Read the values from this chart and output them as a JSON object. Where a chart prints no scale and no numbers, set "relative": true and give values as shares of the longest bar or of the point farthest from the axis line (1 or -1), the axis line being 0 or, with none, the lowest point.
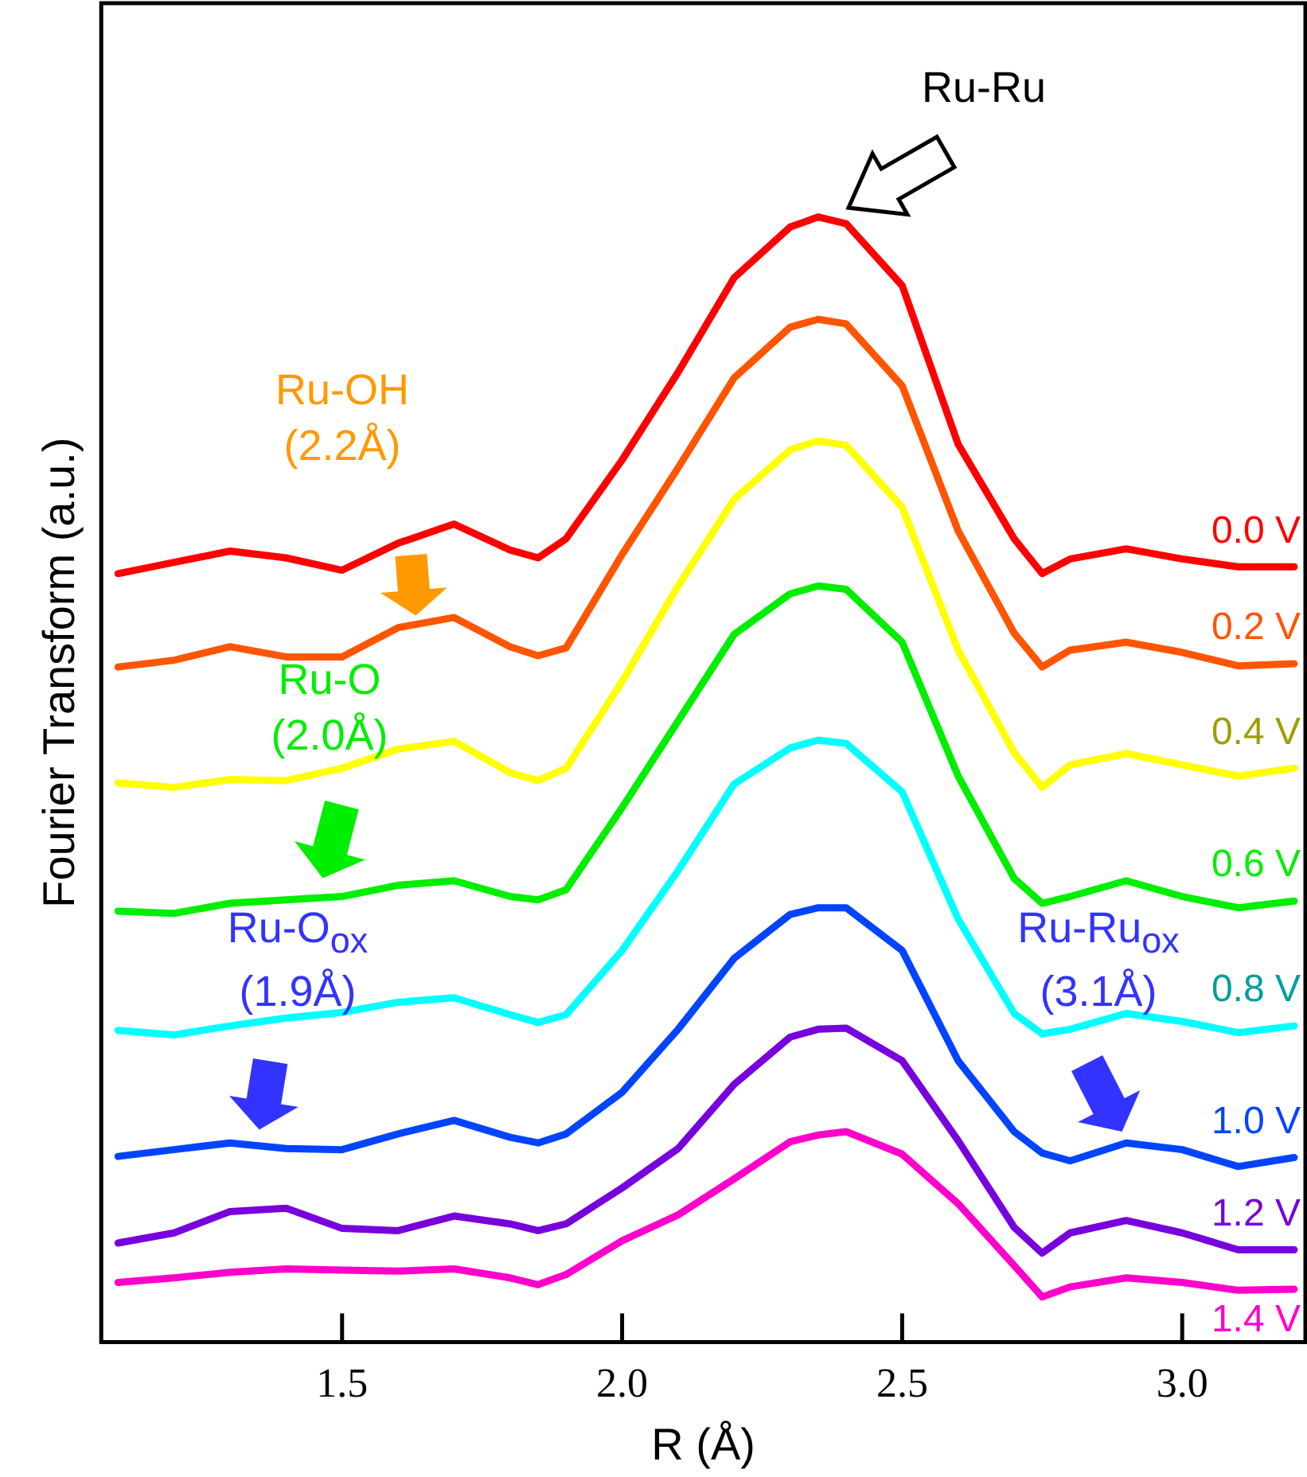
{
  "chart_data": {
    "type": "line",
    "relative": true,
    "xlabel": "R (Å)",
    "ylabel": "Fourier Transform (a.u.)",
    "xlim": [
      1.07,
      3.22
    ],
    "xticks": [
      1.5,
      {
        "value": 2,
        "label": "2.0"
      },
      2.5,
      {
        "value": 3,
        "label": "3.0"
      }
    ],
    "x": [
      1.1,
      1.2,
      1.3,
      1.4,
      1.5,
      1.6,
      1.7,
      1.8,
      1.85,
      1.9,
      2.0,
      2.1,
      2.2,
      2.3,
      2.35,
      2.4,
      2.5,
      2.6,
      2.7,
      2.75,
      2.8,
      2.9,
      3.0,
      3.1,
      3.2
    ],
    "grid": false,
    "legend": false,
    "marker": "none",
    "line_style": "solid",
    "series": [
      {
        "name": "0.0 V",
        "color": "#ff0000",
        "values": [
          0.683,
          0.693,
          0.703,
          0.697,
          0.686,
          0.71,
          0.727,
          0.704,
          0.697,
          0.714,
          0.784,
          0.862,
          0.946,
          0.991,
          1.0,
          0.994,
          0.939,
          0.798,
          0.714,
          0.683,
          0.696,
          0.705,
          0.696,
          0.689,
          0.689
        ]
      },
      {
        "name": "0.2 V",
        "color": "#ff5500",
        "values": [
          0.6,
          0.606,
          0.618,
          0.609,
          0.609,
          0.635,
          0.644,
          0.618,
          0.61,
          0.617,
          0.7,
          0.777,
          0.857,
          0.902,
          0.909,
          0.905,
          0.85,
          0.721,
          0.63,
          0.6,
          0.615,
          0.622,
          0.613,
          0.601,
          0.603
        ]
      },
      {
        "name": "0.4 V",
        "color": "#ffff00",
        "values": [
          0.497,
          0.493,
          0.5,
          0.499,
          0.51,
          0.527,
          0.534,
          0.506,
          0.499,
          0.51,
          0.587,
          0.672,
          0.749,
          0.793,
          0.801,
          0.797,
          0.742,
          0.615,
          0.524,
          0.493,
          0.513,
          0.523,
          0.513,
          0.503,
          0.51
        ]
      },
      {
        "name": "0.6 V",
        "color": "#00ee00",
        "values": [
          0.383,
          0.381,
          0.39,
          0.393,
          0.396,
          0.406,
          0.41,
          0.396,
          0.393,
          0.402,
          0.475,
          0.552,
          0.629,
          0.665,
          0.672,
          0.669,
          0.622,
          0.503,
          0.412,
          0.39,
          0.396,
          0.41,
          0.396,
          0.386,
          0.392
        ]
      },
      {
        "name": "0.8 V",
        "color": "#00ffff",
        "values": [
          0.277,
          0.273,
          0.281,
          0.288,
          0.293,
          0.302,
          0.306,
          0.291,
          0.284,
          0.291,
          0.348,
          0.419,
          0.496,
          0.528,
          0.535,
          0.532,
          0.489,
          0.376,
          0.292,
          0.274,
          0.278,
          0.292,
          0.285,
          0.275,
          0.281
        ]
      },
      {
        "name": "1.0 V",
        "color": "#0044ff",
        "values": [
          0.165,
          0.171,
          0.177,
          0.172,
          0.171,
          0.185,
          0.197,
          0.182,
          0.177,
          0.185,
          0.222,
          0.278,
          0.341,
          0.38,
          0.386,
          0.386,
          0.348,
          0.25,
          0.187,
          0.168,
          0.161,
          0.177,
          0.171,
          0.156,
          0.164
        ]
      },
      {
        "name": "1.2 V",
        "color": "#7700dd",
        "values": [
          0.088,
          0.097,
          0.116,
          0.119,
          0.101,
          0.099,
          0.112,
          0.105,
          0.099,
          0.105,
          0.137,
          0.172,
          0.229,
          0.271,
          0.278,
          0.279,
          0.25,
          0.179,
          0.102,
          0.079,
          0.097,
          0.108,
          0.097,
          0.082,
          0.082
        ]
      },
      {
        "name": "1.4 V",
        "color": "#ff00cc",
        "values": [
          0.053,
          0.057,
          0.062,
          0.065,
          0.064,
          0.063,
          0.065,
          0.057,
          0.051,
          0.06,
          0.09,
          0.113,
          0.145,
          0.178,
          0.184,
          0.187,
          0.167,
          0.123,
          0.068,
          0.04,
          0.049,
          0.057,
          0.053,
          0.046,
          0.047
        ]
      }
    ],
    "annotations": [
      "Ru-Ru",
      "Ru-OH (2.2Å)",
      "Ru-O (2.0Å)",
      "Ru-O$_{ox}$ (1.9Å)",
      "Ru-Ru$_{ox}$ (3.1Å)"
    ]
  }
}
